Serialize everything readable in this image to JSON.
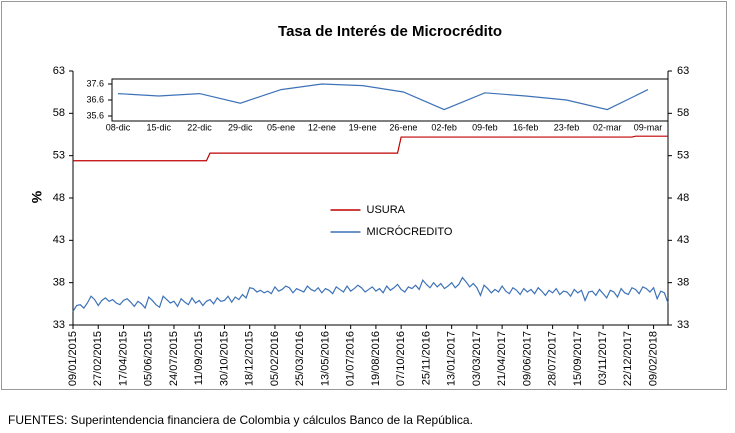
{
  "chart_data": [
    {
      "type": "line",
      "title": "Tasa de Interés de Microcrédito",
      "ylabel": "%",
      "legend": "center",
      "source": "FUENTES: Superintendencia financiera de Colombia y cálculos Banco de la República.",
      "categories": [
        "09/01/2015",
        null,
        null,
        null,
        null,
        null,
        null,
        "27/02/2015",
        null,
        null,
        null,
        null,
        null,
        null,
        "17/04/2015",
        null,
        null,
        null,
        null,
        null,
        null,
        "05/06/2015",
        null,
        null,
        null,
        null,
        null,
        null,
        "24/07/2015",
        null,
        null,
        null,
        null,
        null,
        null,
        "11/09/2015",
        null,
        null,
        null,
        null,
        null,
        null,
        "30/10/2015",
        null,
        null,
        null,
        null,
        null,
        null,
        "18/12/2015",
        null,
        null,
        null,
        null,
        null,
        null,
        "05/02/2016",
        null,
        null,
        null,
        null,
        null,
        null,
        "25/03/2016",
        null,
        null,
        null,
        null,
        null,
        null,
        "13/05/2016",
        null,
        null,
        null,
        null,
        null,
        null,
        "01/07/2016",
        null,
        null,
        null,
        null,
        null,
        null,
        "19/08/2016",
        null,
        null,
        null,
        null,
        null,
        null,
        "07/10/2016",
        null,
        null,
        null,
        null,
        null,
        null,
        "25/11/2016",
        null,
        null,
        null,
        null,
        null,
        null,
        "13/01/2017",
        null,
        null,
        null,
        null,
        null,
        null,
        "03/03/2017",
        null,
        null,
        null,
        null,
        null,
        null,
        "21/04/2017",
        null,
        null,
        null,
        null,
        null,
        null,
        "09/06/2017",
        null,
        null,
        null,
        null,
        null,
        null,
        "28/07/2017",
        null,
        null,
        null,
        null,
        null,
        null,
        "15/09/2017",
        null,
        null,
        null,
        null,
        null,
        null,
        "03/11/2017",
        null,
        null,
        null,
        null,
        null,
        null,
        "22/12/2017",
        null,
        null,
        null,
        null,
        null,
        null,
        "09/02/2018",
        null,
        null,
        null,
        null
      ],
      "ylim": [
        33,
        63
      ],
      "yticks": [
        33,
        38,
        43,
        48,
        53,
        58,
        63
      ],
      "y2lim": [
        33,
        63
      ],
      "y2ticks": [
        33,
        38,
        43,
        48,
        53,
        58,
        63
      ],
      "series": [
        {
          "name": "USURA",
          "color": "#c00000",
          "values": [
            52.4,
            52.4,
            52.4,
            52.4,
            52.4,
            52.4,
            52.4,
            52.4,
            52.4,
            52.4,
            52.4,
            52.4,
            52.4,
            52.4,
            52.4,
            52.4,
            52.4,
            52.4,
            52.4,
            52.4,
            52.4,
            52.4,
            52.4,
            52.4,
            52.4,
            52.4,
            52.4,
            52.4,
            52.4,
            52.4,
            52.4,
            52.4,
            52.4,
            52.4,
            52.4,
            52.4,
            52.4,
            52.4,
            53.3,
            53.3,
            53.3,
            53.3,
            53.3,
            53.3,
            53.3,
            53.3,
            53.3,
            53.3,
            53.3,
            53.3,
            53.3,
            53.3,
            53.3,
            53.3,
            53.3,
            53.3,
            53.3,
            53.3,
            53.3,
            53.3,
            53.3,
            53.3,
            53.3,
            53.3,
            53.3,
            53.3,
            53.3,
            53.3,
            53.3,
            53.3,
            53.3,
            53.3,
            53.3,
            53.3,
            53.3,
            53.3,
            53.3,
            53.3,
            53.3,
            53.3,
            53.3,
            53.3,
            53.3,
            53.3,
            53.3,
            53.3,
            53.3,
            53.3,
            53.3,
            53.3,
            53.3,
            55.2,
            55.2,
            55.2,
            55.2,
            55.2,
            55.2,
            55.2,
            55.2,
            55.2,
            55.2,
            55.2,
            55.2,
            55.2,
            55.2,
            55.2,
            55.2,
            55.2,
            55.2,
            55.2,
            55.2,
            55.2,
            55.2,
            55.2,
            55.2,
            55.2,
            55.2,
            55.2,
            55.2,
            55.2,
            55.2,
            55.2,
            55.2,
            55.2,
            55.2,
            55.2,
            55.2,
            55.2,
            55.2,
            55.2,
            55.2,
            55.2,
            55.2,
            55.2,
            55.2,
            55.2,
            55.2,
            55.2,
            55.2,
            55.2,
            55.2,
            55.2,
            55.2,
            55.2,
            55.2,
            55.2,
            55.2,
            55.2,
            55.2,
            55.2,
            55.2,
            55.2,
            55.2,
            55.2,
            55.2,
            55.2,
            55.3,
            55.3,
            55.3,
            55.3,
            55.3,
            55.3,
            55.3,
            55.3,
            55.3,
            55.3
          ]
        },
        {
          "name": "MICRÓCREDITO",
          "color": "#3d72b8",
          "values": [
            34.6,
            35.3,
            35.4,
            35.0,
            35.6,
            36.4,
            36.0,
            35.3,
            35.9,
            36.2,
            35.8,
            36.0,
            35.6,
            35.4,
            35.9,
            36.1,
            35.7,
            35.2,
            35.8,
            35.5,
            35.0,
            36.3,
            35.9,
            35.4,
            35.1,
            36.4,
            36.0,
            35.6,
            35.8,
            35.2,
            36.1,
            35.7,
            35.4,
            36.2,
            35.6,
            35.9,
            35.3,
            35.8,
            36.0,
            35.5,
            36.2,
            35.8,
            35.9,
            36.4,
            35.7,
            36.3,
            36.0,
            36.6,
            36.2,
            37.4,
            37.3,
            36.9,
            37.1,
            36.8,
            37.0,
            36.7,
            37.5,
            37.0,
            37.2,
            37.6,
            37.4,
            36.8,
            37.3,
            37.1,
            36.9,
            37.6,
            37.2,
            37.0,
            37.4,
            36.8,
            37.3,
            37.1,
            36.7,
            37.5,
            37.2,
            36.9,
            37.6,
            37.0,
            37.3,
            37.7,
            37.4,
            36.9,
            37.2,
            37.5,
            37.0,
            37.3,
            36.8,
            37.6,
            37.1,
            37.4,
            37.8,
            37.2,
            36.9,
            37.5,
            37.3,
            37.7,
            37.2,
            38.3,
            37.8,
            37.4,
            38.0,
            37.5,
            37.9,
            37.3,
            37.6,
            38.0,
            37.4,
            37.8,
            38.6,
            38.1,
            37.5,
            37.9,
            37.4,
            36.5,
            37.7,
            37.3,
            36.8,
            37.2,
            36.9,
            37.6,
            37.0,
            36.7,
            37.4,
            37.1,
            36.6,
            37.3,
            36.9,
            37.2,
            36.7,
            37.4,
            37.0,
            36.5,
            37.1,
            36.8,
            37.3,
            36.6,
            37.0,
            36.9,
            36.4,
            37.2,
            36.8,
            37.1,
            35.9,
            36.9,
            37.0,
            36.5,
            37.2,
            36.7,
            36.2,
            37.1,
            36.9,
            36.3,
            37.3,
            36.8,
            36.6,
            37.4,
            37.2,
            36.7,
            37.5,
            37.3,
            36.9,
            37.4,
            36.1,
            37.0,
            36.8,
            35.6
          ]
        }
      ]
    },
    {
      "type": "line",
      "categories": [
        "08-dic",
        "15-dic",
        "22-dic",
        "29-dic",
        "05-ene",
        "12-ene",
        "19-ene",
        "26-ene",
        "02-feb",
        "09-feb",
        "16-feb",
        "23-feb",
        "02-mar",
        "09-mar"
      ],
      "ylim": [
        35.6,
        37.6
      ],
      "yticks": [
        35.6,
        36.6,
        37.6
      ],
      "series": [
        {
          "name": "MICRÓCREDITO",
          "color": "#3d72b8",
          "values": [
            37.0,
            36.85,
            37.0,
            36.4,
            37.25,
            37.6,
            37.5,
            37.1,
            36.0,
            37.05,
            36.85,
            36.6,
            36.0,
            37.25
          ]
        }
      ]
    }
  ]
}
